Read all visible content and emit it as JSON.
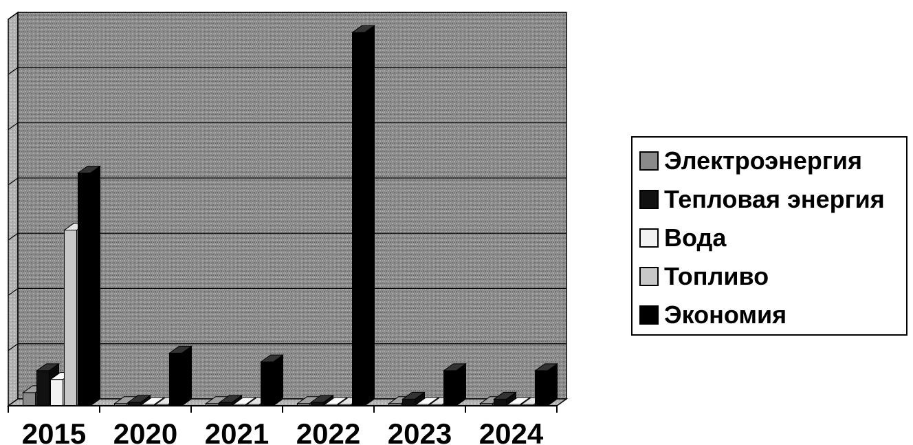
{
  "chart_data": {
    "type": "bar",
    "categories": [
      "2015",
      "2020",
      "2021",
      "2022",
      "2023",
      "2024"
    ],
    "series": [
      {
        "name": "Электроэнергия",
        "color": "#8a8a8a",
        "values": [
          0.3,
          0.05,
          0.05,
          0.05,
          0.05,
          0.05
        ]
      },
      {
        "name": "Тепловая энергия",
        "color": "#111111",
        "values": [
          0.8,
          0.08,
          0.08,
          0.08,
          0.15,
          0.15
        ]
      },
      {
        "name": "Вода",
        "color": "#f2f2f2",
        "values": [
          0.6,
          0.02,
          0.02,
          0.02,
          0.02,
          0.02
        ]
      },
      {
        "name": "Топливо",
        "color": "#c8c8c8",
        "values": [
          4.0,
          0.02,
          0.02,
          0.02,
          0.02,
          0.02
        ]
      },
      {
        "name": "Экономия",
        "color": "#000000",
        "values": [
          5.3,
          1.2,
          1.0,
          8.5,
          0.8,
          0.8
        ]
      }
    ],
    "ylim": [
      0,
      8.8
    ],
    "grid": true,
    "legend": "right"
  }
}
